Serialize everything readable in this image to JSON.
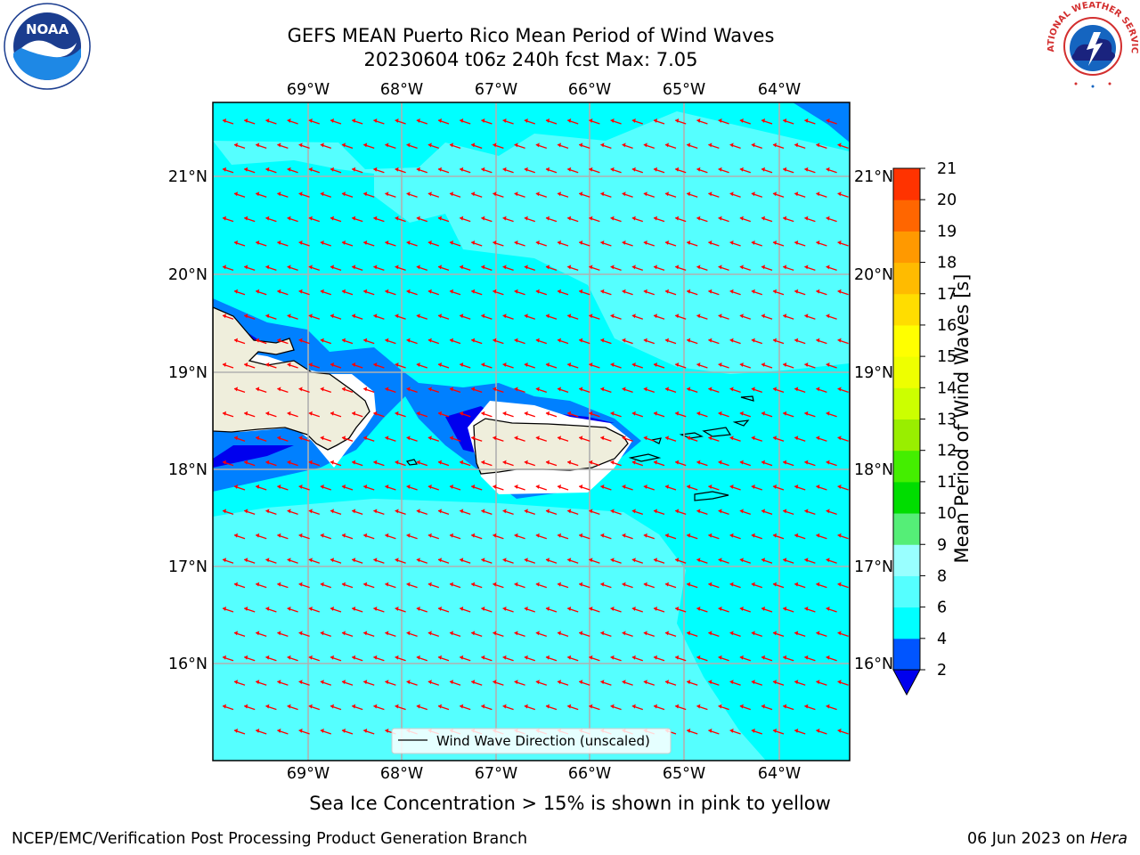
{
  "title": {
    "line1": "GEFS MEAN Puerto Rico Mean Period of Wind Waves",
    "line2": "20230604 t06z 240h fcst   Max: 7.05"
  },
  "map": {
    "lon_labels": [
      "69°W",
      "68°W",
      "67°W",
      "66°W",
      "65°W",
      "64°W"
    ],
    "lat_labels": [
      "21°N",
      "20°N",
      "19°N",
      "18°N",
      "17°N",
      "16°N"
    ],
    "legend_label": "Wind Wave Direction (unscaled)",
    "wave_direction_color": "#ff0000",
    "land_color": "#efeedc"
  },
  "colorbar": {
    "label": "Mean Period of Wind Waves [s]",
    "tick_labels": [
      "2",
      "4",
      "6",
      "8",
      "9",
      "10",
      "11",
      "12",
      "13",
      "14",
      "15",
      "16",
      "17",
      "18",
      "19",
      "20",
      "21"
    ],
    "colors": [
      "#0055ff",
      "#00ffff",
      "#55ffff",
      "#99ffff",
      "#55ee77",
      "#00dd00",
      "#44ee00",
      "#99ee00",
      "#ccff00",
      "#eeff00",
      "#ffff00",
      "#ffdd00",
      "#ffbb00",
      "#ff9900",
      "#ff6600",
      "#ff3300",
      "#ff0000"
    ],
    "under_color": "#0000ee"
  },
  "footer": {
    "note": "Sea Ice Concentration > 15% is shown in pink to yellow",
    "credit_left": "NCEP/EMC/Verification Post Processing Product Generation Branch",
    "credit_right_prefix": "06 Jun 2023 on ",
    "credit_right_host": "Hera"
  },
  "logos": {
    "noaa_text": "NOAA",
    "nws_text": "NATIONAL WEATHER SERVICE"
  }
}
